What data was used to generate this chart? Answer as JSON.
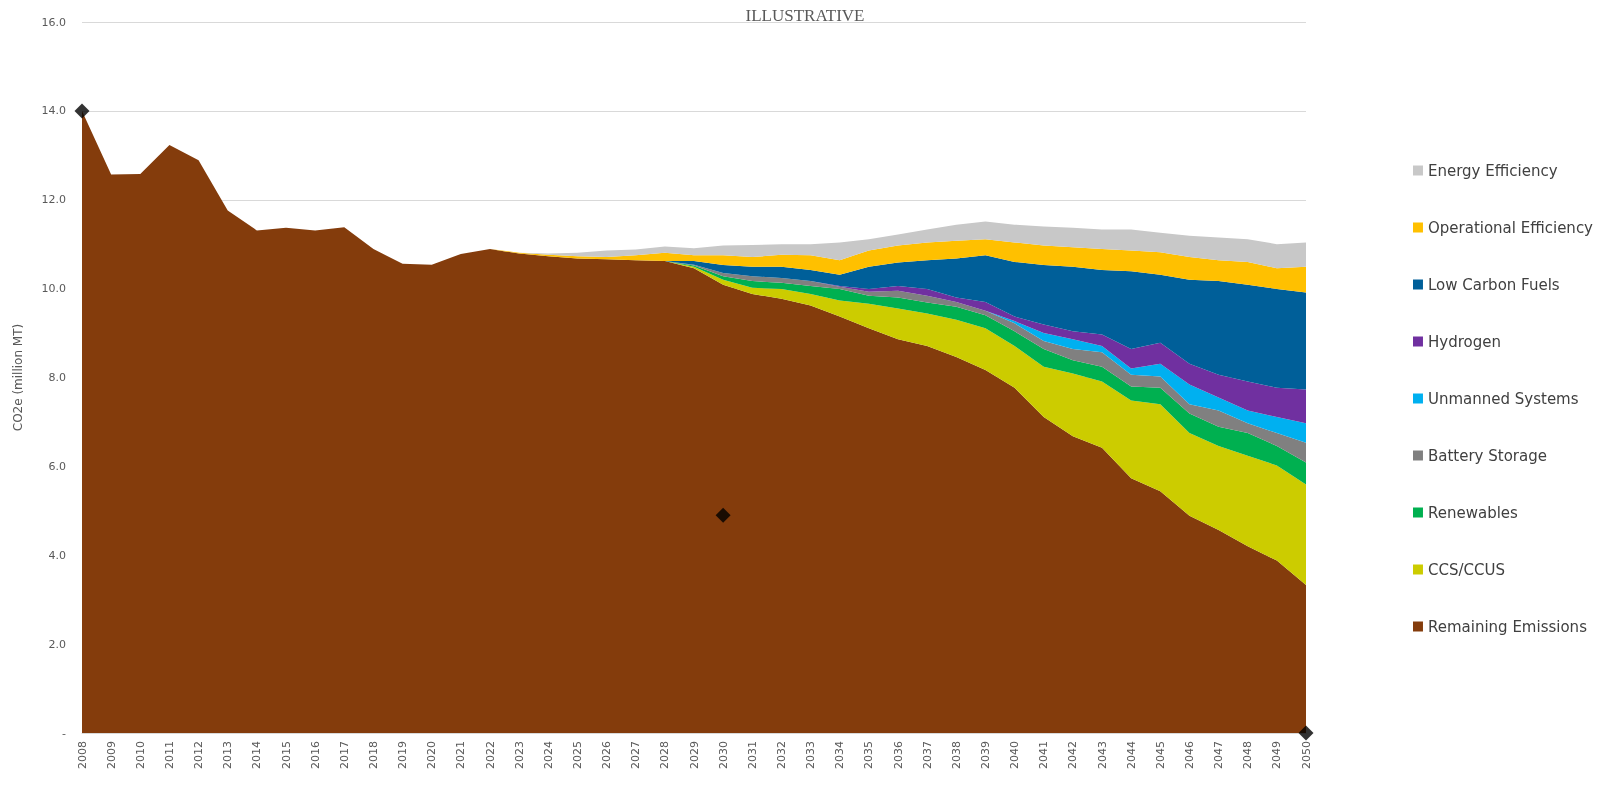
{
  "chart_data": {
    "type": "area",
    "title": "ILLUSTRATIVE",
    "ylabel": "CO2e (million MT)",
    "stacked": true,
    "grid": "y",
    "legend": "right",
    "categories": [
      "2008",
      "2009",
      "2010",
      "2011",
      "2012",
      "2013",
      "2014",
      "2015",
      "2016",
      "2017",
      "2018",
      "2019",
      "2020",
      "2021",
      "2022",
      "2023",
      "2024",
      "2025",
      "2026",
      "2027",
      "2028",
      "2029",
      "2030",
      "2031",
      "2032",
      "2033",
      "2034",
      "2035",
      "2036",
      "2037",
      "2038",
      "2039",
      "2040",
      "2041",
      "2042",
      "2043",
      "2044",
      "2045",
      "2046",
      "2047",
      "2048",
      "2049",
      "2050"
    ],
    "ylim": [
      0,
      16
    ],
    "yticks": [
      {
        "value": 0,
        "label": "-"
      },
      {
        "value": 2,
        "label": "2.0"
      },
      {
        "value": 4,
        "label": "4.0"
      },
      {
        "value": 6,
        "label": "6.0"
      },
      {
        "value": 8,
        "label": "8.0"
      },
      {
        "value": 10,
        "label": "10.0"
      },
      {
        "value": 12,
        "label": "12.0"
      },
      {
        "value": 14,
        "label": "14.0"
      },
      {
        "value": 16,
        "label": "16.0"
      }
    ],
    "series": [
      {
        "name": "Remaining Emissions",
        "color": "#843c0c",
        "values": [
          14.0,
          12.57,
          12.58,
          13.23,
          12.89,
          11.76,
          11.31,
          11.37,
          11.31,
          11.38,
          10.89,
          10.56,
          10.54,
          10.78,
          10.89,
          10.79,
          10.73,
          10.68,
          10.66,
          10.64,
          10.62,
          10.46,
          10.09,
          9.88,
          9.77,
          9.62,
          9.37,
          9.11,
          8.86,
          8.71,
          8.46,
          8.17,
          7.77,
          7.11,
          6.68,
          6.42,
          5.73,
          5.44,
          4.89,
          4.57,
          4.2,
          3.88,
          3.33
        ]
      },
      {
        "name": "CCS/CCUS",
        "color": "#cccc00",
        "values": [
          0,
          0,
          0,
          0,
          0,
          0,
          0,
          0,
          0,
          0,
          0,
          0,
          0,
          0,
          0,
          0,
          0,
          0,
          0,
          0,
          0,
          0.03,
          0.11,
          0.14,
          0.22,
          0.26,
          0.36,
          0.55,
          0.69,
          0.73,
          0.84,
          0.94,
          0.94,
          1.13,
          1.41,
          1.49,
          1.75,
          1.96,
          1.86,
          1.89,
          2.04,
          2.14,
          2.26
        ]
      },
      {
        "name": "Renewables",
        "color": "#00b050",
        "values": [
          0,
          0,
          0,
          0,
          0,
          0,
          0,
          0,
          0,
          0,
          0,
          0,
          0,
          0,
          0,
          0,
          0,
          0,
          0,
          0,
          0,
          0.03,
          0.08,
          0.15,
          0.14,
          0.18,
          0.26,
          0.18,
          0.25,
          0.25,
          0.29,
          0.29,
          0.33,
          0.4,
          0.3,
          0.33,
          0.32,
          0.37,
          0.44,
          0.43,
          0.51,
          0.44,
          0.5
        ]
      },
      {
        "name": "Battery Storage",
        "color": "#808080",
        "values": [
          0,
          0,
          0,
          0,
          0,
          0,
          0,
          0,
          0,
          0,
          0,
          0,
          0,
          0,
          0,
          0,
          0,
          0,
          0,
          0,
          0,
          0.02,
          0.07,
          0.11,
          0.11,
          0.11,
          0.05,
          0.09,
          0.15,
          0.15,
          0.11,
          0.1,
          0.18,
          0.18,
          0.25,
          0.33,
          0.26,
          0.25,
          0.21,
          0.37,
          0.22,
          0.29,
          0.44
        ]
      },
      {
        "name": "Unmanned Systems",
        "color": "#00b0f0",
        "values": [
          0,
          0,
          0,
          0,
          0,
          0,
          0,
          0,
          0,
          0,
          0,
          0,
          0,
          0,
          0,
          0,
          0,
          0,
          0,
          0,
          0,
          0,
          0,
          0,
          0,
          0,
          0,
          0,
          0,
          0,
          0,
          0,
          0.05,
          0.18,
          0.22,
          0.14,
          0.14,
          0.29,
          0.44,
          0.29,
          0.29,
          0.36,
          0.44
        ]
      },
      {
        "name": "Hydrogen",
        "color": "#7030a0",
        "values": [
          0,
          0,
          0,
          0,
          0,
          0,
          0,
          0,
          0,
          0,
          0,
          0,
          0,
          0,
          0,
          0,
          0,
          0,
          0,
          0,
          0,
          0,
          0,
          0,
          0,
          0,
          0.02,
          0.06,
          0.11,
          0.15,
          0.1,
          0.2,
          0.1,
          0.19,
          0.18,
          0.26,
          0.44,
          0.47,
          0.47,
          0.51,
          0.65,
          0.66,
          0.76
        ]
      },
      {
        "name": "Low Carbon Fuels",
        "color": "#005f99",
        "values": [
          0,
          0,
          0,
          0,
          0,
          0,
          0,
          0,
          0,
          0,
          0,
          0,
          0,
          0,
          0,
          0,
          0,
          0,
          0,
          0,
          0,
          0.08,
          0.18,
          0.21,
          0.25,
          0.25,
          0.25,
          0.5,
          0.53,
          0.65,
          0.88,
          1.05,
          1.23,
          1.34,
          1.45,
          1.45,
          1.75,
          1.53,
          1.89,
          2.11,
          2.18,
          2.22,
          2.18
        ]
      },
      {
        "name": "Operational Efficiency",
        "color": "#ffc000",
        "values": [
          0,
          0,
          0,
          0,
          0,
          0,
          0,
          0,
          0,
          0,
          0,
          0,
          0,
          0,
          0,
          0.02,
          0.03,
          0.05,
          0.05,
          0.11,
          0.19,
          0.13,
          0.22,
          0.22,
          0.27,
          0.33,
          0.33,
          0.37,
          0.38,
          0.4,
          0.4,
          0.36,
          0.44,
          0.44,
          0.44,
          0.47,
          0.47,
          0.51,
          0.51,
          0.47,
          0.51,
          0.47,
          0.58
        ]
      },
      {
        "name": "Energy Efficiency",
        "color": "#c8c8c8",
        "values": [
          0,
          0,
          0,
          0,
          0,
          0,
          0,
          0,
          0,
          0,
          0,
          0,
          0,
          0,
          0,
          0,
          0.03,
          0.08,
          0.15,
          0.13,
          0.14,
          0.16,
          0.22,
          0.27,
          0.24,
          0.25,
          0.4,
          0.25,
          0.25,
          0.29,
          0.36,
          0.4,
          0.4,
          0.43,
          0.44,
          0.44,
          0.47,
          0.44,
          0.48,
          0.51,
          0.51,
          0.54,
          0.55
        ]
      },
      {
        "type": "scatter",
        "marker": "diamond",
        "color": "#000000",
        "values": [
          14.0,
          null,
          null,
          null,
          null,
          null,
          null,
          null,
          null,
          null,
          null,
          null,
          null,
          null,
          null,
          null,
          null,
          null,
          null,
          null,
          null,
          null,
          4.9,
          null,
          null,
          null,
          null,
          null,
          null,
          null,
          null,
          null,
          null,
          null,
          null,
          null,
          null,
          null,
          null,
          null,
          null,
          null,
          0
        ]
      }
    ]
  }
}
